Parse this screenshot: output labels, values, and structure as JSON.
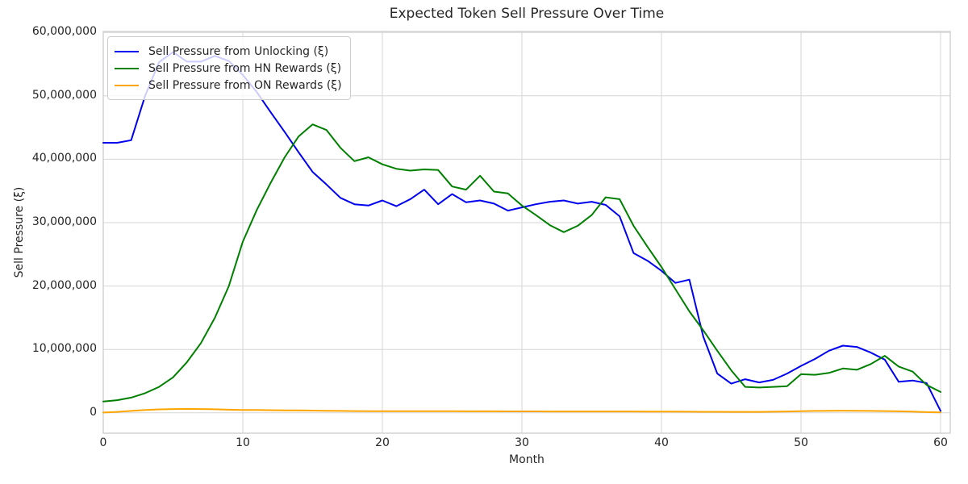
{
  "figure": {
    "background": "#ffffff",
    "grid_color": "#d6d6d6",
    "frame_color": "#cccccc",
    "text_color": "#262626"
  },
  "chart_data": {
    "type": "line",
    "title": "Expected Token Sell Pressure Over Time",
    "xlabel": "Month",
    "ylabel": "Sell Pressure (ξ)",
    "grid": true,
    "legend_position": "upper left",
    "xlim": [
      0,
      60.7
    ],
    "ylim": [
      -3200000,
      60000000
    ],
    "x_ticks": [
      {
        "value": 0,
        "label": "0"
      },
      {
        "value": 10,
        "label": "10"
      },
      {
        "value": 20,
        "label": "20"
      },
      {
        "value": 30,
        "label": "30"
      },
      {
        "value": 40,
        "label": "40"
      },
      {
        "value": 50,
        "label": "50"
      },
      {
        "value": 60,
        "label": "60"
      }
    ],
    "y_ticks": [
      {
        "value": 0,
        "label": "0"
      },
      {
        "value": 10000000,
        "label": "10,000,000"
      },
      {
        "value": 20000000,
        "label": "20,000,000"
      },
      {
        "value": 30000000,
        "label": "30,000,000"
      },
      {
        "value": 40000000,
        "label": "40,000,000"
      },
      {
        "value": 50000000,
        "label": "50,000,000"
      },
      {
        "value": 60000000,
        "label": "60,000,000"
      }
    ],
    "x": [
      0,
      1,
      2,
      3,
      4,
      5,
      6,
      7,
      8,
      9,
      10,
      11,
      12,
      13,
      14,
      15,
      16,
      17,
      18,
      19,
      20,
      21,
      22,
      23,
      24,
      25,
      26,
      27,
      28,
      29,
      30,
      31,
      32,
      33,
      34,
      35,
      36,
      37,
      38,
      39,
      40,
      41,
      42,
      43,
      44,
      45,
      46,
      47,
      48,
      49,
      50,
      51,
      52,
      53,
      54,
      55,
      56,
      57,
      58,
      59,
      60
    ],
    "series": [
      {
        "name": "Sell Pressure from Unlocking (ξ)",
        "color": "#0000ee",
        "values": [
          42600000,
          42600000,
          43000000,
          50000000,
          55300000,
          56900000,
          55400000,
          55400000,
          56300000,
          55500000,
          53300000,
          50600000,
          47400000,
          44300000,
          41100000,
          38000000,
          36000000,
          33900000,
          32900000,
          32700000,
          33500000,
          32600000,
          33700000,
          35200000,
          32900000,
          34500000,
          33200000,
          33500000,
          33000000,
          31900000,
          32400000,
          32900000,
          33300000,
          33500000,
          33000000,
          33300000,
          32800000,
          31000000,
          25200000,
          24000000,
          22400000,
          20500000,
          21000000,
          12000000,
          6200000,
          4600000,
          5300000,
          4800000,
          5200000,
          6200000,
          7400000,
          8500000,
          9800000,
          10600000,
          10400000,
          9500000,
          8400000,
          4900000,
          5100000,
          4700000,
          300000
        ]
      },
      {
        "name": "Sell Pressure from HN Rewards (ξ)",
        "color": "#008000",
        "values": [
          1800000,
          2000000,
          2400000,
          3100000,
          4100000,
          5600000,
          8000000,
          11000000,
          15000000,
          20000000,
          27000000,
          32000000,
          36300000,
          40300000,
          43600000,
          45500000,
          44600000,
          41800000,
          39700000,
          40300000,
          39200000,
          38500000,
          38200000,
          38400000,
          38300000,
          35700000,
          35200000,
          37400000,
          34900000,
          34600000,
          32700000,
          31200000,
          29600000,
          28500000,
          29500000,
          31200000,
          34000000,
          33700000,
          29500000,
          26200000,
          23000000,
          19500000,
          16000000,
          13000000,
          9800000,
          6700000,
          4100000,
          4000000,
          4100000,
          4200000,
          6100000,
          6000000,
          6300000,
          7000000,
          6800000,
          7700000,
          9000000,
          7300000,
          6500000,
          4400000,
          3300000
        ]
      },
      {
        "name": "Sell Pressure from ON Rewards (ξ)",
        "color": "#ffa500",
        "values": [
          50000,
          150000,
          300000,
          450000,
          550000,
          600000,
          620000,
          600000,
          560000,
          500000,
          460000,
          440000,
          420000,
          400000,
          380000,
          360000,
          330000,
          300000,
          280000,
          270000,
          260000,
          260000,
          250000,
          250000,
          250000,
          250000,
          240000,
          240000,
          240000,
          230000,
          230000,
          230000,
          220000,
          220000,
          220000,
          220000,
          220000,
          220000,
          210000,
          200000,
          200000,
          190000,
          180000,
          170000,
          160000,
          150000,
          150000,
          150000,
          180000,
          220000,
          260000,
          300000,
          320000,
          340000,
          330000,
          310000,
          280000,
          240000,
          200000,
          120000,
          70000
        ]
      }
    ]
  }
}
